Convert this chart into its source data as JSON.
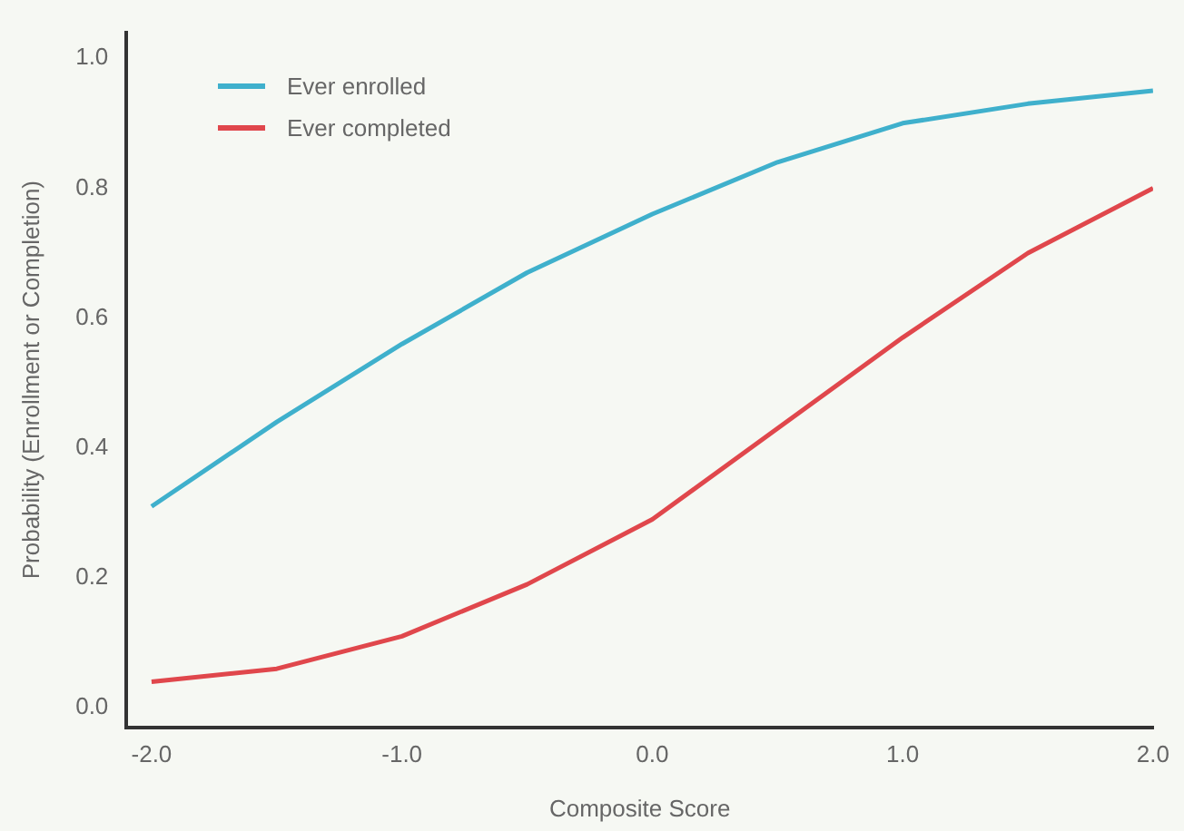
{
  "chart_data": {
    "type": "line",
    "xlabel": "Composite Score",
    "ylabel": "Probability (Enrollment or Completion)",
    "x": [
      -2.0,
      -1.5,
      -1.0,
      -0.5,
      0.0,
      0.5,
      1.0,
      1.5,
      2.0
    ],
    "series": [
      {
        "name": "Ever enrolled",
        "color": "#3fb0cc",
        "values": [
          0.31,
          0.44,
          0.56,
          0.67,
          0.76,
          0.84,
          0.9,
          0.93,
          0.95
        ]
      },
      {
        "name": "Ever completed",
        "color": "#e0474c",
        "values": [
          0.04,
          0.06,
          0.11,
          0.19,
          0.29,
          0.43,
          0.57,
          0.7,
          0.8
        ]
      }
    ],
    "xlim": [
      -2.1,
      2.0
    ],
    "xticks": [
      {
        "value": -2,
        "label": "-2.0"
      },
      {
        "value": -1,
        "label": "-1.0"
      },
      {
        "value": 0,
        "label": "0.0"
      },
      {
        "value": 1,
        "label": "1.0"
      },
      {
        "value": 2,
        "label": "2.0"
      }
    ],
    "ylim": [
      -0.03,
      1.04
    ],
    "yticks": [
      {
        "value": 0,
        "label": "0.0"
      },
      {
        "value": 0.2,
        "label": "0.2"
      },
      {
        "value": 0.4,
        "label": "0.4"
      },
      {
        "value": 0.6,
        "label": "0.6"
      },
      {
        "value": 0.8,
        "label": "0.8"
      },
      {
        "value": 1,
        "label": "1.0"
      }
    ],
    "grid": false,
    "legend": "top left",
    "marker": "none",
    "line_style": "solid"
  }
}
